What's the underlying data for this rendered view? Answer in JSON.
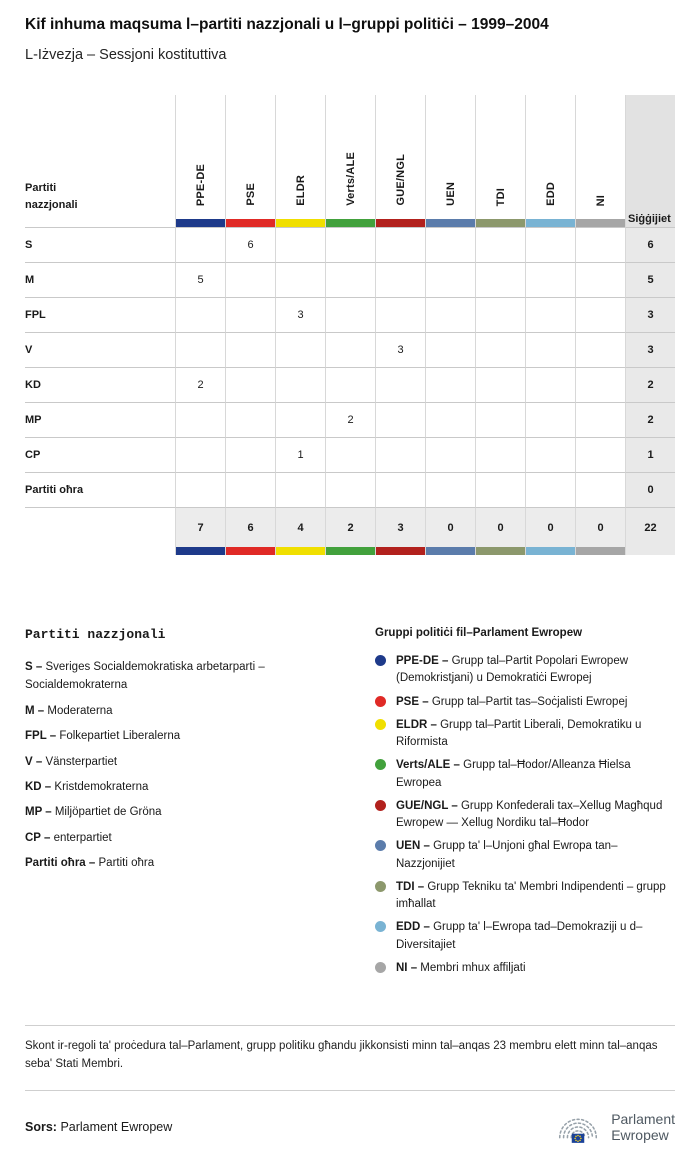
{
  "header": {
    "title": "Kif inhuma maqsuma l–partiti nazzjonali u l–gruppi politiċi – 1999–2004",
    "subtitle": "L-Iżvezja – Sessjoni kostituttiva"
  },
  "chart_data": {
    "type": "table",
    "title": "Kif inhuma maqsuma l–partiti nazzjonali u l–gruppi politiċi – 1999–2004",
    "subtitle": "L-Iżvezja – Sessjoni kostituttiva",
    "row_header": "Partiti nazzjonali",
    "seats_header": "Siġġijiet",
    "groups": [
      {
        "id": "PPE-DE",
        "color": "#1e3a8a"
      },
      {
        "id": "PSE",
        "color": "#e02a26"
      },
      {
        "id": "ELDR",
        "color": "#f0df00"
      },
      {
        "id": "Verts/ALE",
        "color": "#42a13c"
      },
      {
        "id": "GUE/NGL",
        "color": "#b2211d"
      },
      {
        "id": "UEN",
        "color": "#5b7cab"
      },
      {
        "id": "TDI",
        "color": "#8c986c"
      },
      {
        "id": "EDD",
        "color": "#79b3d3"
      },
      {
        "id": "NI",
        "color": "#a6a6a6"
      }
    ],
    "rows": [
      {
        "party": "S",
        "values": [
          "",
          "6",
          "",
          "",
          "",
          "",
          "",
          "",
          ""
        ],
        "total": "6"
      },
      {
        "party": "M",
        "values": [
          "5",
          "",
          "",
          "",
          "",
          "",
          "",
          "",
          ""
        ],
        "total": "5"
      },
      {
        "party": "FPL",
        "values": [
          "",
          "",
          "3",
          "",
          "",
          "",
          "",
          "",
          ""
        ],
        "total": "3"
      },
      {
        "party": "V",
        "values": [
          "",
          "",
          "",
          "",
          "3",
          "",
          "",
          "",
          ""
        ],
        "total": "3"
      },
      {
        "party": "KD",
        "values": [
          "2",
          "",
          "",
          "",
          "",
          "",
          "",
          "",
          ""
        ],
        "total": "2"
      },
      {
        "party": "MP",
        "values": [
          "",
          "",
          "",
          "2",
          "",
          "",
          "",
          "",
          ""
        ],
        "total": "2"
      },
      {
        "party": "CP",
        "values": [
          "",
          "",
          "1",
          "",
          "",
          "",
          "",
          "",
          ""
        ],
        "total": "1"
      },
      {
        "party": "Partiti oħra",
        "values": [
          "",
          "",
          "",
          "",
          "",
          "",
          "",
          "",
          ""
        ],
        "total": "0"
      }
    ],
    "totals": [
      "7",
      "6",
      "4",
      "2",
      "3",
      "0",
      "0",
      "0",
      "0"
    ],
    "grand_total": "22"
  },
  "legend_parties": {
    "heading": "Partiti nazzjonali",
    "items": [
      {
        "abbr": "S",
        "name": "Sveriges Socialdemokratiska arbetarparti – Socialdemokraterna"
      },
      {
        "abbr": "M",
        "name": "Moderaterna"
      },
      {
        "abbr": "FPL",
        "name": "Folkepartiet Liberalerna"
      },
      {
        "abbr": "V",
        "name": "Vänsterpartiet"
      },
      {
        "abbr": "KD",
        "name": "Kristdemokraterna"
      },
      {
        "abbr": "MP",
        "name": "Miljöpartiet de Gröna"
      },
      {
        "abbr": "CP",
        "name": "enterpartiet"
      },
      {
        "abbr": "Partiti oħra",
        "name": "Partiti oħra"
      }
    ]
  },
  "legend_groups": {
    "heading": "Gruppi politiċi fil–Parlament Ewropew",
    "items": [
      {
        "abbr": "PPE-DE",
        "desc": "Grupp tal–Partit Popolari Ewropew (Demokristjani) u Demokratiċi Ewropej",
        "color": "#1e3a8a"
      },
      {
        "abbr": "PSE",
        "desc": "Grupp tal–Partit tas–Soċjalisti Ewropej",
        "color": "#e02a26"
      },
      {
        "abbr": "ELDR",
        "desc": "Grupp tal–Partit Liberali, Demokratiku u Riformista",
        "color": "#f0df00"
      },
      {
        "abbr": "Verts/ALE",
        "desc": "Grupp tal–Ħodor/Alleanza Ħielsa Ewropea",
        "color": "#42a13c"
      },
      {
        "abbr": "GUE/NGL",
        "desc": "Grupp Konfederali tax–Xellug Magħqud Ewropew — Xellug Nordiku tal–Ħodor",
        "color": "#b2211d"
      },
      {
        "abbr": "UEN",
        "desc": "Grupp ta' l–Unjoni għal Ewropa tan–Nazzjonijiet",
        "color": "#5b7cab"
      },
      {
        "abbr": "TDI",
        "desc": "Grupp Tekniku ta' Membri Indipendenti – grupp imħallat",
        "color": "#8c986c"
      },
      {
        "abbr": "EDD",
        "desc": "Grupp ta' l–Ewropa tad–Demokraziji u d–Diversitajiet",
        "color": "#79b3d3"
      },
      {
        "abbr": "NI",
        "desc": "Membri mhux affiljati",
        "color": "#a6a6a6"
      }
    ]
  },
  "footnote": "Skont ir-regoli ta' proċedura tal–Parlament, grupp politiku għandu jikkonsisti minn tal–anqas 23 membru elett minn tal–anqas seba' Stati Membri.",
  "footer": {
    "source_label": "Sors:",
    "source_text": "Parlament Ewropew",
    "logo_line1": "Parlament",
    "logo_line2": "Ewropew"
  }
}
